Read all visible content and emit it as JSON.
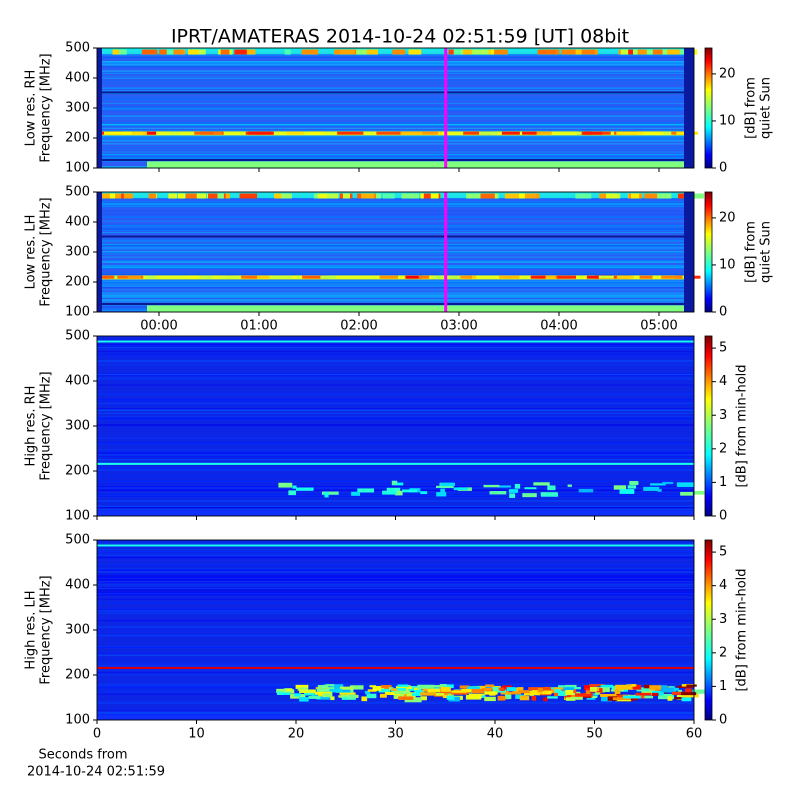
{
  "title": "IPRT/AMATERAS 2014-10-24 02:51:59 [UT]   08bit",
  "x_label_lines": [
    "Seconds from",
    "2014-10-24 02:51:59"
  ],
  "chart_data": [
    {
      "type": "spectrogram",
      "ylabel": [
        "Low res. RH",
        "Frequency [MHz]"
      ],
      "ylim": [
        100,
        500
      ],
      "yticks": [
        100,
        200,
        300,
        400,
        500
      ],
      "xlim": [
        -0.62,
        5.35
      ],
      "marker_x": 2.867,
      "marker_color": "#ff00ff",
      "colorbar": {
        "label": [
          "[dB] from",
          "quiet Sun"
        ],
        "lim": [
          0,
          25.5
        ],
        "ticks": [
          0,
          10,
          20
        ]
      }
    },
    {
      "type": "spectrogram",
      "ylabel": [
        "Low res. LH",
        "Frequency [MHz]"
      ],
      "ylim": [
        100,
        500
      ],
      "yticks": [
        100,
        200,
        300,
        400,
        500
      ],
      "xlim": [
        -0.62,
        5.35
      ],
      "marker_x": 2.867,
      "marker_color": "#ff00ff",
      "xticks": [
        {
          "value": 0,
          "label": "00:00"
        },
        {
          "value": 1,
          "label": "01:00"
        },
        {
          "value": 2,
          "label": "02:00"
        },
        {
          "value": 3,
          "label": "03:00"
        },
        {
          "value": 4,
          "label": "04:00"
        },
        {
          "value": 5,
          "label": "05:00"
        }
      ],
      "colorbar": {
        "label": [
          "[dB] from",
          "quiet Sun"
        ],
        "lim": [
          0,
          25.5
        ],
        "ticks": [
          0,
          10,
          20
        ]
      }
    },
    {
      "type": "spectrogram",
      "ylabel": [
        "High res. RH",
        "Frequency [MHz]"
      ],
      "ylim": [
        100,
        500
      ],
      "yticks": [
        100,
        200,
        300,
        400,
        500
      ],
      "xlim": [
        0,
        60
      ],
      "colorbar": {
        "label": [
          "[dB] from min-hold"
        ],
        "lim": [
          0,
          5.36
        ],
        "ticks": [
          0,
          1,
          2,
          3,
          4,
          5
        ]
      }
    },
    {
      "type": "spectrogram",
      "ylabel": [
        "High res. LH",
        "Frequency [MHz]"
      ],
      "ylim": [
        100,
        500
      ],
      "yticks": [
        100,
        200,
        300,
        400,
        500
      ],
      "xlim": [
        0,
        60
      ],
      "xticks": [
        0,
        10,
        20,
        30,
        40,
        50,
        60
      ],
      "colorbar": {
        "label": [
          "[dB] from min-hold"
        ],
        "lim": [
          0,
          5.36
        ],
        "ticks": [
          0,
          1,
          2,
          3,
          4,
          5
        ]
      }
    }
  ]
}
